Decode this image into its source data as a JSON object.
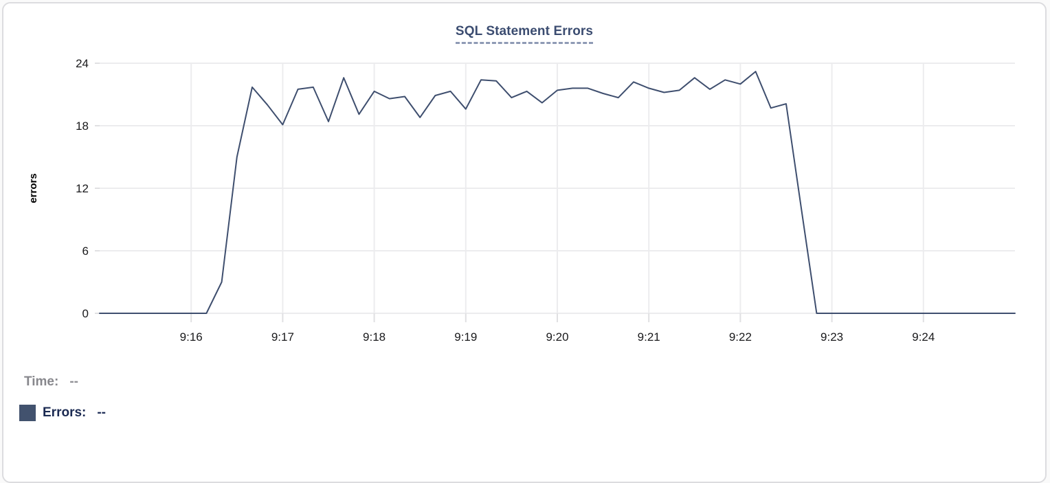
{
  "chart": {
    "title": "SQL Statement Errors",
    "y_axis_label": "errors"
  },
  "legend": {
    "time_label": "Time:",
    "time_value": "--",
    "errors_label": "Errors:",
    "errors_value": "--"
  },
  "colors": {
    "line": "#3e4e6e",
    "grid": "#ececee",
    "tick": "#e0e0e2",
    "axis_text": "#19191b",
    "title": "#3b4c70",
    "legend_marker": "#42526e",
    "legend_time": "#87878c",
    "legend_errors": "#1b2a52"
  },
  "chart_data": {
    "type": "line",
    "title": "SQL Statement Errors",
    "xlabel": "",
    "ylabel": "errors",
    "ylim": [
      0,
      24
    ],
    "y_ticks": [
      0,
      6,
      12,
      18,
      24
    ],
    "x_tick_labels": [
      "9:16",
      "9:17",
      "9:18",
      "9:19",
      "9:20",
      "9:21",
      "9:22",
      "9:23",
      "9:24"
    ],
    "x_range": [
      "9:15:00",
      "9:25:00"
    ],
    "sample_interval_seconds": 10,
    "grid": true,
    "legend_position": "bottom-left",
    "series": [
      {
        "name": "Errors",
        "times": [
          "9:15:00",
          "9:15:10",
          "9:15:20",
          "9:15:30",
          "9:15:40",
          "9:15:50",
          "9:16:00",
          "9:16:10",
          "9:16:20",
          "9:16:30",
          "9:16:40",
          "9:16:50",
          "9:17:00",
          "9:17:10",
          "9:17:20",
          "9:17:30",
          "9:17:40",
          "9:17:50",
          "9:18:00",
          "9:18:10",
          "9:18:20",
          "9:18:30",
          "9:18:40",
          "9:18:50",
          "9:19:00",
          "9:19:10",
          "9:19:20",
          "9:19:30",
          "9:19:40",
          "9:19:50",
          "9:20:00",
          "9:20:10",
          "9:20:20",
          "9:20:30",
          "9:20:40",
          "9:20:50",
          "9:21:00",
          "9:21:10",
          "9:21:20",
          "9:21:30",
          "9:21:40",
          "9:21:50",
          "9:22:00",
          "9:22:10",
          "9:22:20",
          "9:22:30",
          "9:22:40",
          "9:22:50",
          "9:23:00",
          "9:23:10",
          "9:23:20",
          "9:23:30",
          "9:23:40",
          "9:23:50",
          "9:24:00",
          "9:24:10",
          "9:24:20",
          "9:24:30",
          "9:24:40",
          "9:24:50",
          "9:25:00"
        ],
        "values": [
          0,
          0,
          0,
          0,
          0,
          0,
          0,
          0,
          3,
          15,
          21.7,
          20,
          18.1,
          21.5,
          21.7,
          18.4,
          22.6,
          19.1,
          21.3,
          20.6,
          20.8,
          18.8,
          20.9,
          21.3,
          19.6,
          22.4,
          22.3,
          20.7,
          21.3,
          20.2,
          21.4,
          21.6,
          21.6,
          21.1,
          20.7,
          22.2,
          21.6,
          21.2,
          21.4,
          22.6,
          21.5,
          22.4,
          22.0,
          23.2,
          19.7,
          20.1,
          10,
          0,
          0,
          0,
          0,
          0,
          0,
          0,
          0,
          0,
          0,
          0,
          0,
          0,
          0
        ]
      }
    ]
  }
}
